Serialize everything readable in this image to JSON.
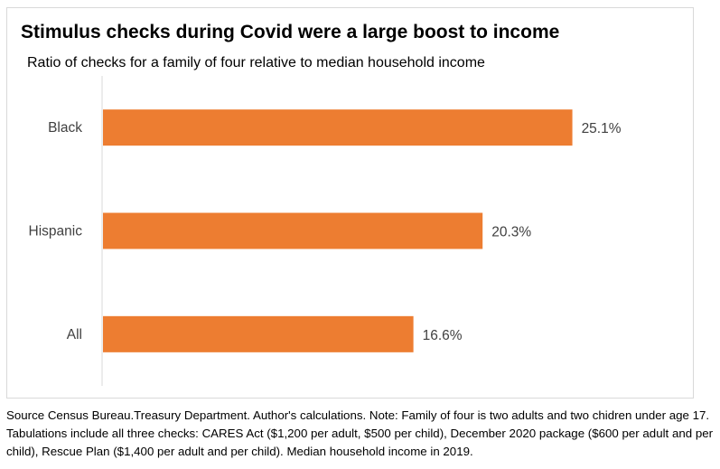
{
  "chart_data": {
    "type": "bar",
    "orientation": "horizontal",
    "title": "Stimulus checks during Covid were a large boost to income",
    "subtitle": "Ratio of checks for a family of four relative to median household income",
    "categories": [
      "Black",
      "Hispanic",
      "All"
    ],
    "values": [
      25.1,
      20.3,
      16.6
    ],
    "data_labels": [
      "25.1%",
      "20.3%",
      "16.6%"
    ],
    "value_unit": "%",
    "xlim": [
      0,
      30
    ],
    "grid": false,
    "legend": "none",
    "bar_color": "#ED7D31",
    "axis_color": "#d9d9d9"
  },
  "source_note": "Source Census Bureau.Treasury Department. Author's calculations. Note: Family of four is two adults and two chidren under age 17. Tabulations include all three checks: CARES Act ($1,200 per adult, $500 per child), December 2020 package ($600 per adult and per child), Rescue Plan ($1,400 per adult and per child). Median household income in 2019."
}
